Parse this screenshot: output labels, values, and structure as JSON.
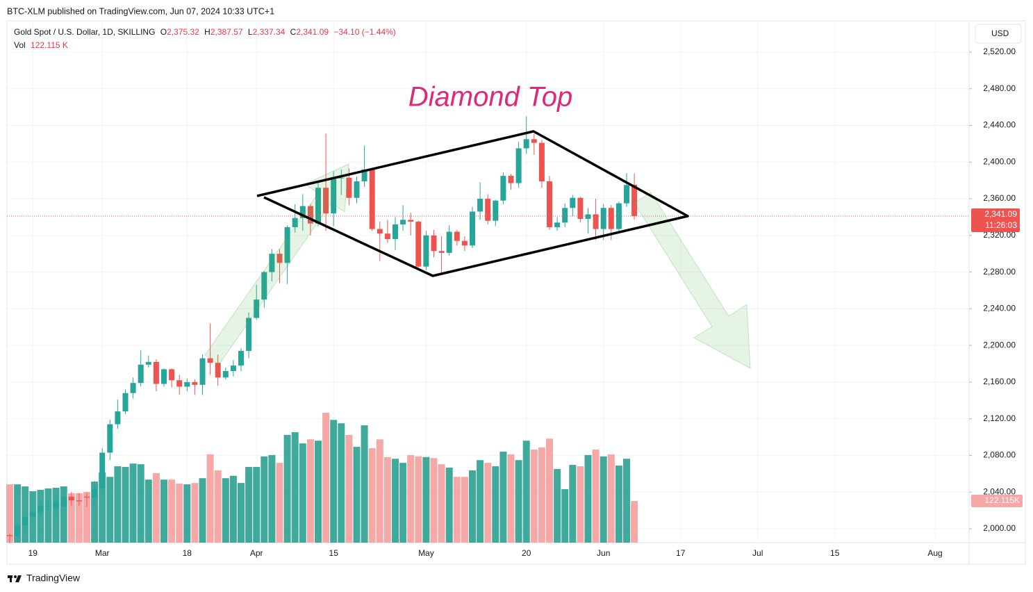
{
  "header": {
    "publisher": "BTC-XLM published on TradingView.com, Jun 07, 2024 10:33 UTC+1",
    "brand": "TradingView"
  },
  "chart_data": {
    "type": "candlestick",
    "legend": {
      "symbol": "Gold Spot / U.S. Dollar, 1D, SKILLING",
      "items": [
        {
          "key": "O",
          "value": "2,375.32"
        },
        {
          "key": "H",
          "value": "2,387.57"
        },
        {
          "key": "L",
          "value": "2,337.34"
        },
        {
          "key": "C",
          "value": "2,341.09"
        }
      ],
      "change": "−34.10 (−1.44%)",
      "vol_key": "Vol",
      "vol_value": "122.115 K"
    },
    "currency": "USD",
    "annotation": "Diamond Top",
    "last_price_label": "2,341.09",
    "countdown": "11:26:03",
    "volume_label": "122.115K",
    "up_color": "#26a69a",
    "down_color": "#ef5350",
    "volume_up_color": "#3fa99c",
    "volume_down_color": "#f6a8a6",
    "grid": true,
    "x": [
      "02-14",
      "02-15",
      "02-16",
      "02-19",
      "02-20",
      "02-21",
      "02-22",
      "02-23",
      "02-26",
      "02-27",
      "02-28",
      "02-29",
      "03-01",
      "03-04",
      "03-05",
      "03-06",
      "03-07",
      "03-08",
      "03-11",
      "03-12",
      "03-13",
      "03-14",
      "03-15",
      "03-18",
      "03-19",
      "03-20",
      "03-21",
      "03-22",
      "03-25",
      "03-26",
      "03-27",
      "03-28",
      "04-01",
      "04-02",
      "04-03",
      "04-04",
      "04-05",
      "04-08",
      "04-09",
      "04-10",
      "04-11",
      "04-12",
      "04-15",
      "04-16",
      "04-17",
      "04-18",
      "04-19",
      "04-22",
      "04-23",
      "04-24",
      "04-25",
      "04-26",
      "04-29",
      "04-30",
      "05-01",
      "05-02",
      "05-03",
      "05-06",
      "05-07",
      "05-08",
      "05-09",
      "05-10",
      "05-13",
      "05-14",
      "05-15",
      "05-16",
      "05-17",
      "05-20",
      "05-21",
      "05-22",
      "05-23",
      "05-24",
      "05-27",
      "05-28",
      "05-29",
      "05-30",
      "05-31",
      "06-03",
      "06-04",
      "06-05",
      "06-06",
      "06-07"
    ],
    "open": [
      1993,
      1992,
      2004,
      2013,
      2018,
      2025,
      2022,
      2024,
      2035,
      2031,
      2035,
      2034,
      2044,
      2083,
      2114,
      2128,
      2148,
      2159,
      2179,
      2182,
      2158,
      2174,
      2162,
      2155,
      2160,
      2157,
      2186,
      2181,
      2165,
      2172,
      2178,
      2194,
      2230,
      2250,
      2280,
      2300,
      2290,
      2329,
      2339,
      2352,
      2333,
      2372,
      2344,
      2383,
      2383,
      2361,
      2379,
      2392,
      2327,
      2322,
      2316,
      2332,
      2337,
      2335,
      2286,
      2320,
      2303,
      2301,
      2324,
      2314,
      2309,
      2346,
      2360,
      2336,
      2358,
      2385,
      2377,
      2415,
      2425,
      2421,
      2379,
      2329,
      2334,
      2350,
      2361,
      2338,
      2343,
      2327,
      2350,
      2327,
      2355,
      2375.32
    ],
    "high": [
      1995,
      2006,
      2015,
      2021,
      2031,
      2033,
      2034,
      2041,
      2040,
      2039,
      2039,
      2052,
      2088,
      2119,
      2141,
      2152,
      2165,
      2195,
      2189,
      2185,
      2175,
      2175,
      2168,
      2164,
      2163,
      2190,
      2224,
      2190,
      2176,
      2184,
      2197,
      2236,
      2266,
      2281,
      2305,
      2305,
      2331,
      2354,
      2365,
      2354,
      2378,
      2431,
      2390,
      2392,
      2393,
      2384,
      2418,
      2392,
      2335,
      2337,
      2340,
      2353,
      2345,
      2336,
      2325,
      2326,
      2319,
      2331,
      2326,
      2319,
      2351,
      2378,
      2365,
      2359,
      2389,
      2387,
      2422,
      2450,
      2431,
      2424,
      2385,
      2340,
      2355,
      2364,
      2362,
      2350,
      2360,
      2354,
      2353,
      2357,
      2388,
      2387.57
    ],
    "low": [
      1984,
      1990,
      1996,
      2012,
      2015,
      2020,
      2015,
      2022,
      2025,
      2025,
      2024,
      2025,
      2039,
      2075,
      2109,
      2125,
      2142,
      2155,
      2176,
      2150,
      2155,
      2154,
      2146,
      2150,
      2146,
      2146,
      2168,
      2156,
      2163,
      2166,
      2172,
      2186,
      2228,
      2241,
      2270,
      2268,
      2267,
      2323,
      2325,
      2320,
      2330,
      2325,
      2330,
      2364,
      2353,
      2355,
      2373,
      2325,
      2292,
      2312,
      2304,
      2325,
      2320,
      2285,
      2282,
      2296,
      2277,
      2298,
      2309,
      2303,
      2306,
      2337,
      2332,
      2330,
      2354,
      2370,
      2372,
      2409,
      2408,
      2372,
      2326,
      2325,
      2329,
      2341,
      2334,
      2322,
      2315,
      2315,
      2315,
      2323,
      2351,
      2337.34
    ],
    "close": [
      1992,
      2004,
      2013,
      2018,
      2025,
      2025,
      2030,
      2035,
      2031,
      2030,
      2034,
      2044,
      2083,
      2114,
      2128,
      2148,
      2159,
      2179,
      2182,
      2158,
      2174,
      2162,
      2155,
      2160,
      2157,
      2186,
      2181,
      2165,
      2172,
      2178,
      2194,
      2230,
      2250,
      2280,
      2300,
      2290,
      2329,
      2339,
      2352,
      2333,
      2372,
      2344,
      2383,
      2383,
      2361,
      2379,
      2392,
      2327,
      2322,
      2316,
      2332,
      2337,
      2335,
      2286,
      2320,
      2303,
      2301,
      2324,
      2314,
      2309,
      2346,
      2360,
      2336,
      2358,
      2385,
      2377,
      2415,
      2425,
      2421,
      2379,
      2329,
      2334,
      2350,
      2361,
      2338,
      2343,
      2327,
      2350,
      2327,
      2355,
      2375,
      2341.09
    ],
    "volume": [
      171,
      171,
      165,
      151,
      155,
      159,
      161,
      165,
      145,
      145,
      149,
      179,
      206,
      193,
      224,
      222,
      232,
      230,
      185,
      204,
      185,
      185,
      173,
      171,
      175,
      189,
      259,
      212,
      189,
      196,
      175,
      222,
      222,
      253,
      257,
      234,
      316,
      324,
      291,
      303,
      299,
      381,
      360,
      350,
      316,
      281,
      344,
      277,
      303,
      251,
      246,
      234,
      257,
      253,
      251,
      248,
      230,
      220,
      193,
      193,
      212,
      242,
      234,
      224,
      267,
      259,
      242,
      299,
      273,
      279,
      305,
      216,
      157,
      228,
      224,
      257,
      273,
      253,
      259,
      226,
      246,
      122.115
    ],
    "volume_ylim": [
      0,
      1530
    ],
    "ylim": [
      1984.8,
      2554.1
    ],
    "yticks": [
      {
        "value": 2000,
        "label": "2,000.00"
      },
      {
        "value": 2040,
        "label": "2,040.00"
      },
      {
        "value": 2080,
        "label": "2,080.00"
      },
      {
        "value": 2120,
        "label": "2,120.00"
      },
      {
        "value": 2160,
        "label": "2,160.00"
      },
      {
        "value": 2200,
        "label": "2,200.00"
      },
      {
        "value": 2240,
        "label": "2,240.00"
      },
      {
        "value": 2280,
        "label": "2,280.00"
      },
      {
        "value": 2320,
        "label": "2,320.00"
      },
      {
        "value": 2360,
        "label": "2,360.00"
      },
      {
        "value": 2400,
        "label": "2,400.00"
      },
      {
        "value": 2440,
        "label": "2,440.00"
      },
      {
        "value": 2480,
        "label": "2,480.00"
      },
      {
        "value": 2520,
        "label": "2,520.00"
      }
    ],
    "xticks": [
      {
        "value": "02-19",
        "label": "19"
      },
      {
        "value": "03-01",
        "label": "Mar"
      },
      {
        "value": "03-18",
        "label": "18"
      },
      {
        "value": "04-01",
        "label": "Apr"
      },
      {
        "value": "04-15",
        "label": "15"
      },
      {
        "value": "05-01",
        "label": "May"
      },
      {
        "value": "05-20",
        "label": "20"
      },
      {
        "value": "06-03",
        "label": "Jun"
      },
      {
        "value": "06-17",
        "label": "17"
      },
      {
        "value": "07-01",
        "label": "Jul"
      },
      {
        "value": "07-15",
        "label": "15"
      },
      {
        "value": "08-01",
        "label": "Aug"
      }
    ]
  }
}
